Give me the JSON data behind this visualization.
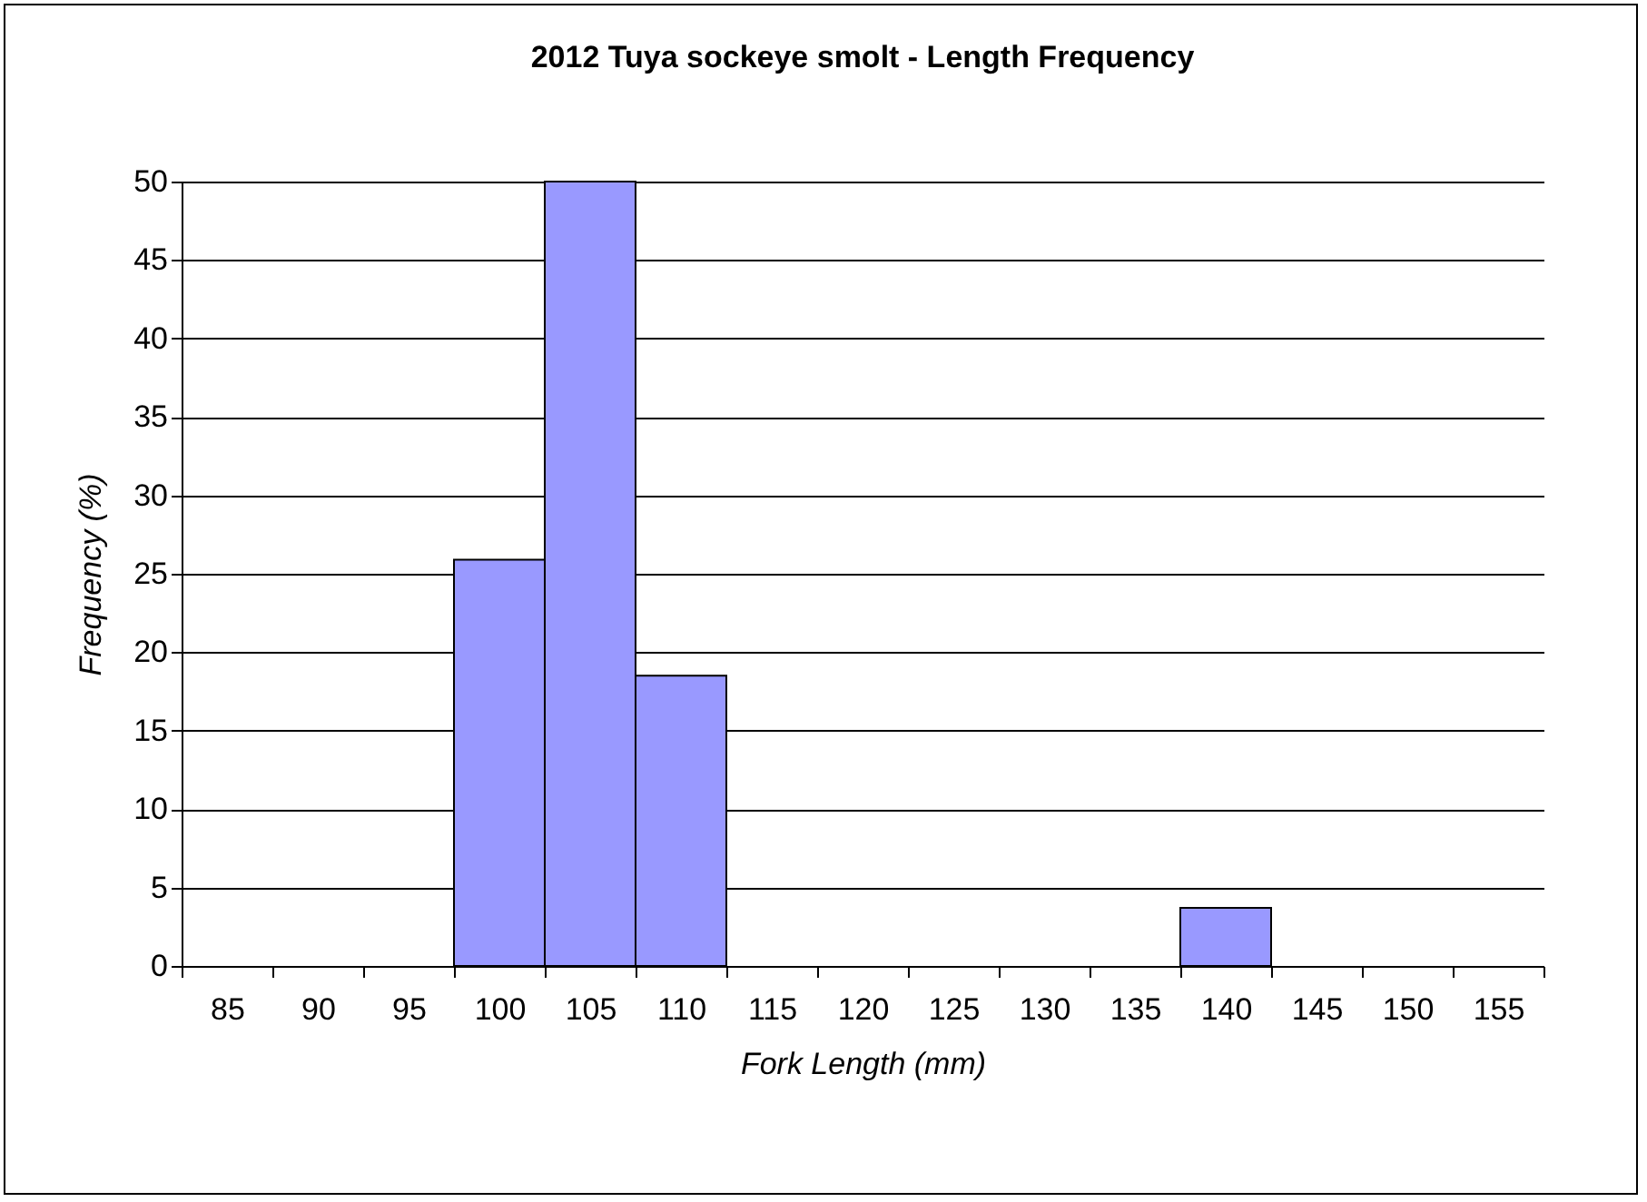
{
  "chart_data": {
    "type": "bar",
    "title": "2012 Tuya sockeye smolt -  Length Frequency",
    "xlabel": "Fork Length (mm)",
    "ylabel": "Frequency (%)",
    "categories": [
      "85",
      "90",
      "95",
      "100",
      "105",
      "110",
      "115",
      "120",
      "125",
      "130",
      "135",
      "140",
      "145",
      "150",
      "155"
    ],
    "values": [
      0,
      0,
      0,
      25.9,
      50,
      18.5,
      0,
      0,
      0,
      0,
      0,
      3.7,
      0,
      0,
      0
    ],
    "color": "#9999ff",
    "ylim": [
      0,
      50
    ],
    "yticks": [
      0,
      5,
      10,
      15,
      20,
      25,
      30,
      35,
      40,
      45,
      50
    ],
    "grid": "y"
  }
}
